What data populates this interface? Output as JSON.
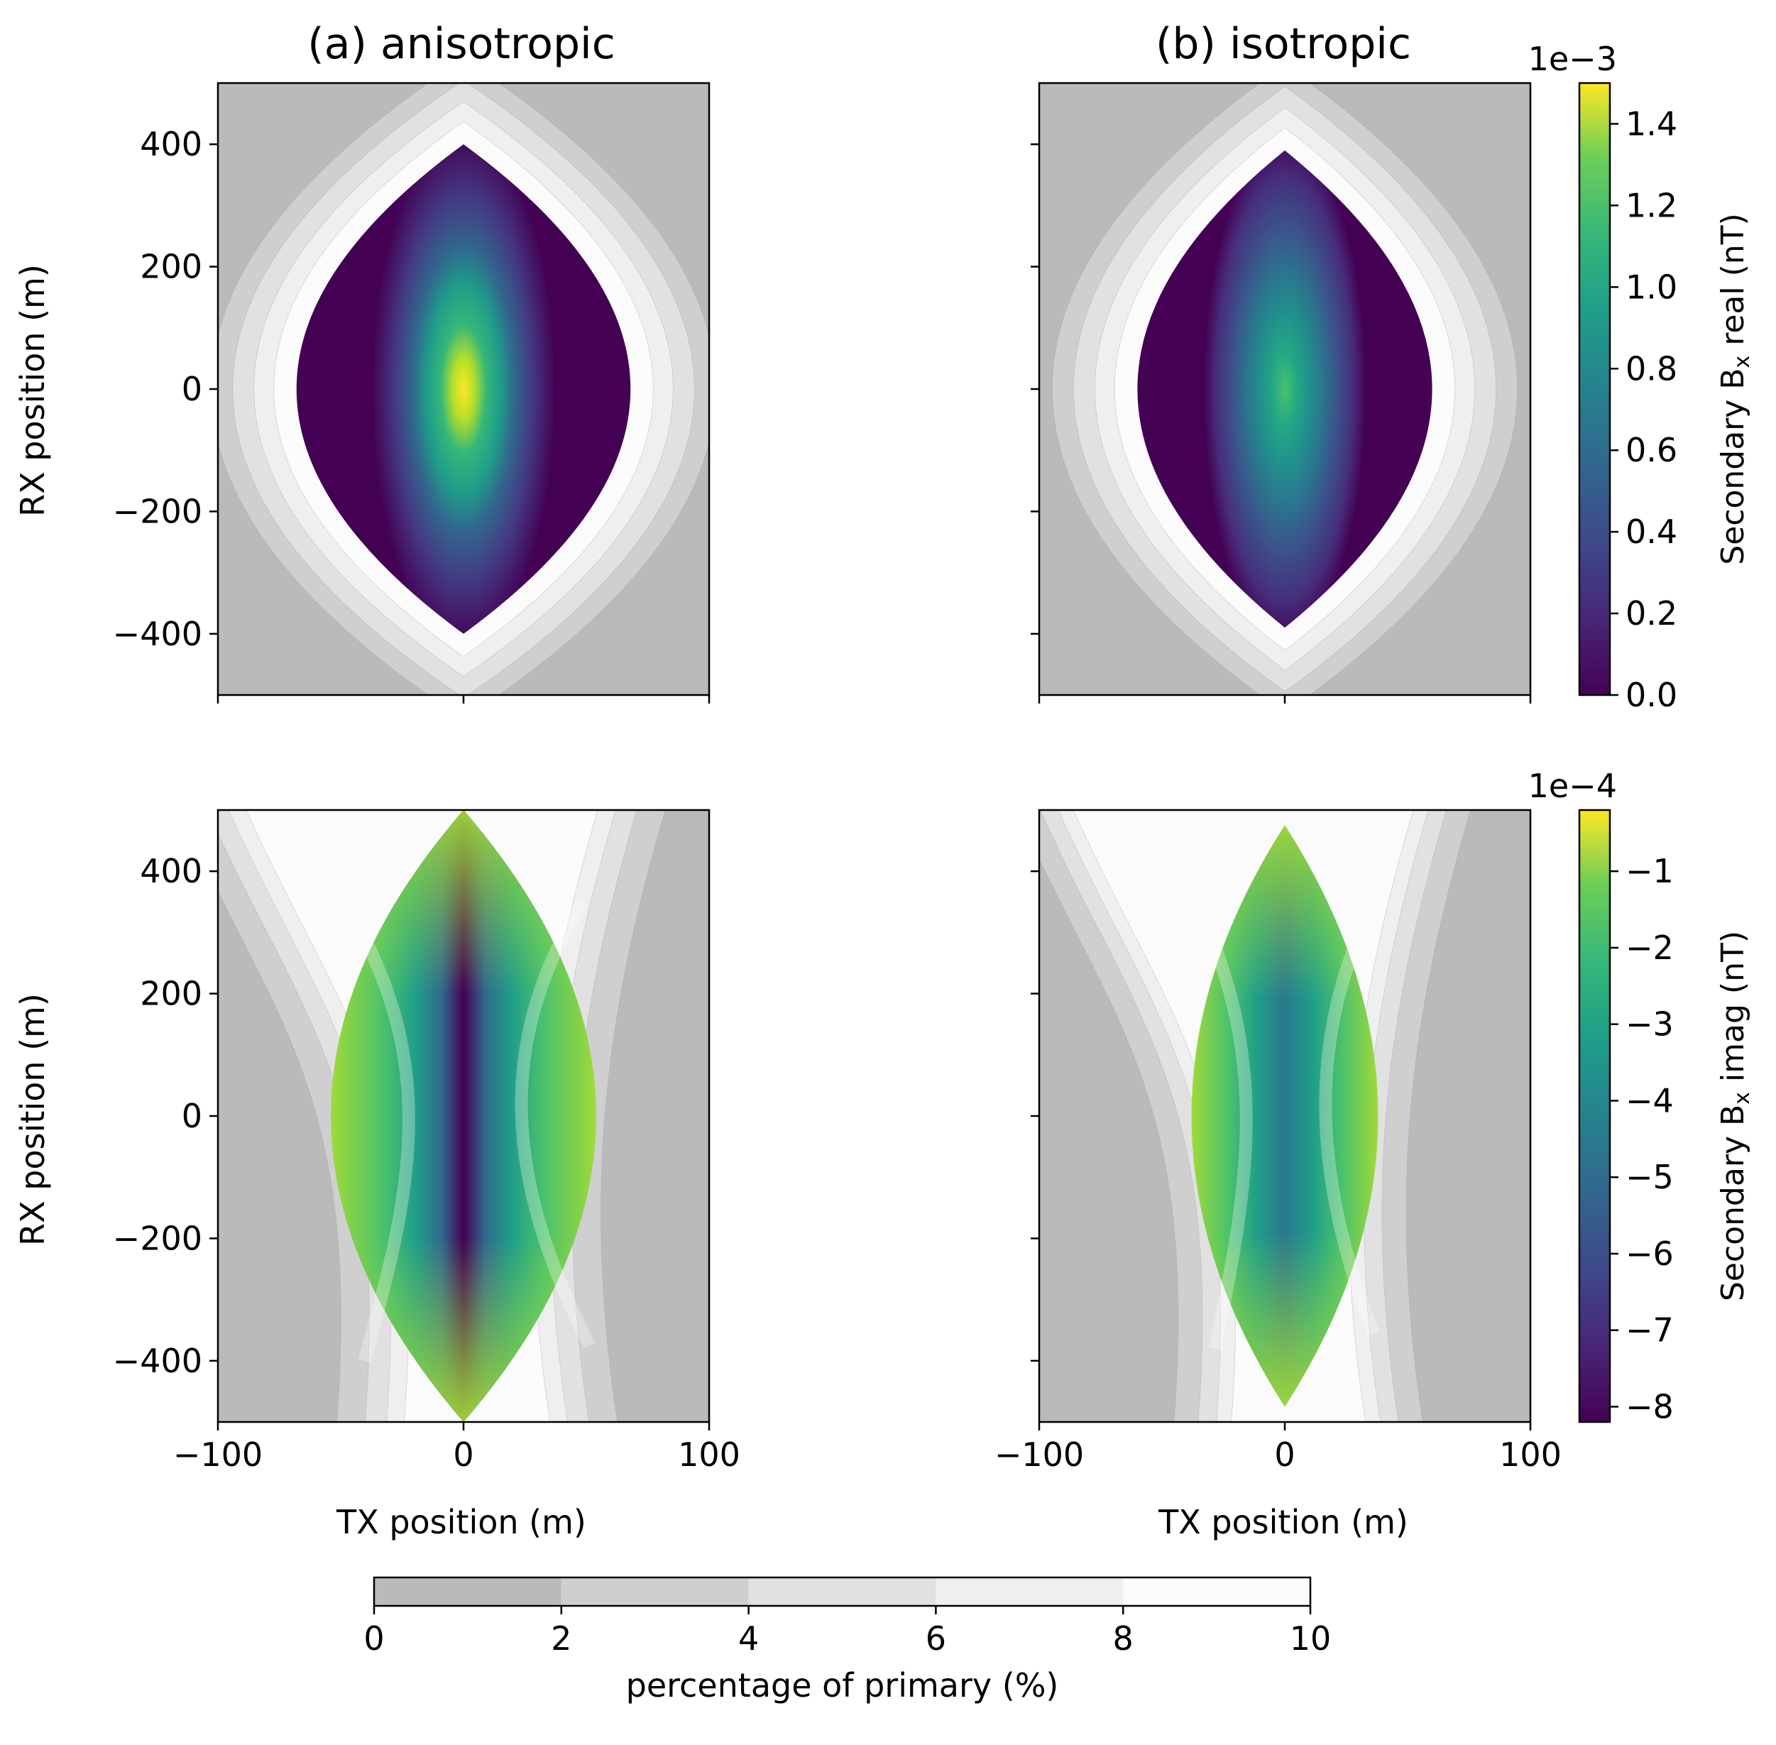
{
  "figure": {
    "titles": [
      "(a) anisotropic",
      "(b) isotropic"
    ]
  },
  "chart_data": [
    {
      "type": "heatmap",
      "panel": "top-left",
      "title": "(a) anisotropic",
      "xlabel": "",
      "ylabel": "RX position (m)",
      "xlim": [
        -100,
        100
      ],
      "ylim": [
        -500,
        500
      ],
      "yticks": [
        "400",
        "200",
        "0",
        "−200",
        "−400"
      ],
      "field": "Secondary Bx real (nT)",
      "peak": 1.5,
      "lens_halfwidth": 68,
      "lens_halfheight": 400,
      "background": "percentage of primary (%)"
    },
    {
      "type": "heatmap",
      "panel": "top-right",
      "title": "(b) isotropic",
      "xlim": [
        -100,
        100
      ],
      "ylim": [
        -500,
        500
      ],
      "field": "Secondary Bx real (nT)",
      "peak": 1.0,
      "lens_halfwidth": 60,
      "lens_halfheight": 390,
      "background": "percentage of primary (%)"
    },
    {
      "type": "heatmap",
      "panel": "bottom-left",
      "xlabel": "TX position (m)",
      "ylabel": "RX position (m)",
      "xlim": [
        -100,
        100
      ],
      "ylim": [
        -500,
        500
      ],
      "xticks": [
        "−100",
        "0",
        "100"
      ],
      "yticks": [
        "400",
        "200",
        "0",
        "−200",
        "−400"
      ],
      "field": "Secondary Bx imag (nT)",
      "min": -8.2,
      "lens_halfwidth": 54,
      "lens_halfheight": 500,
      "background": "percentage of primary (%)"
    },
    {
      "type": "heatmap",
      "panel": "bottom-right",
      "xlabel": "TX position (m)",
      "xlim": [
        -100,
        100
      ],
      "ylim": [
        -500,
        500
      ],
      "xticks": [
        "−100",
        "0",
        "100"
      ],
      "field": "Secondary Bx imag (nT)",
      "min": -5.0,
      "lens_halfwidth": 38,
      "lens_halfheight": 475,
      "background": "percentage of primary (%)"
    }
  ],
  "colorbars": {
    "real": {
      "label_main": "Secondary B",
      "label_sub": "x",
      "label_tail": " real (nT)",
      "offset": "1e−3",
      "range": [
        0,
        1.5
      ],
      "ticks": [
        "0.0",
        "0.2",
        "0.4",
        "0.6",
        "0.8",
        "1.0",
        "1.2",
        "1.4"
      ]
    },
    "imag": {
      "label_main": "Secondary B",
      "label_sub": "x",
      "label_tail": " imag (nT)",
      "offset": "1e−4",
      "range": [
        -8.2,
        -0.2
      ],
      "ticks": [
        "−1",
        "−2",
        "−3",
        "−4",
        "−5",
        "−6",
        "−7",
        "−8"
      ]
    },
    "primary": {
      "label": "percentage of primary (%)",
      "ticks": [
        "0",
        "2",
        "4",
        "6",
        "8",
        "10"
      ],
      "colors": [
        "#bababa",
        "#cfcfcf",
        "#e1e1e1",
        "#efefef",
        "#fbfbfb"
      ]
    }
  }
}
